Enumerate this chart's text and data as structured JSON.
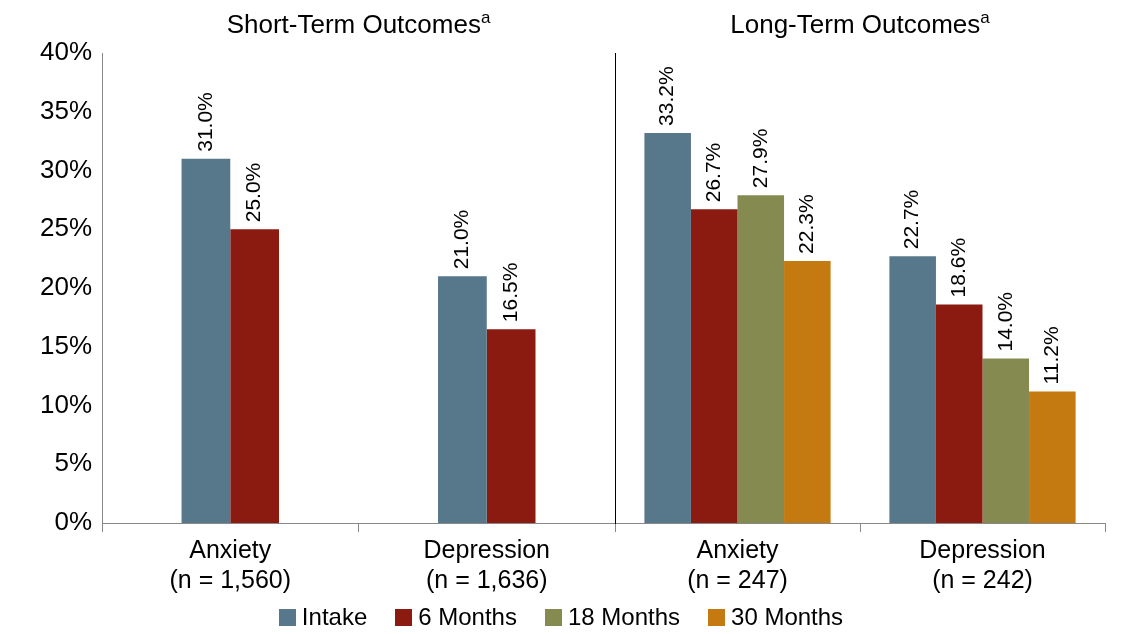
{
  "chart_data": [
    {
      "type": "bar",
      "title": "Short-Term Outcomes$^{a}$",
      "categories": [
        "Anxiety\n(n = 1,560)",
        "Depression\n(n = 1,636)"
      ],
      "legend": "bottom",
      "ylim": [
        0,
        40
      ],
      "yticks": [
        {
          "value": 0,
          "label": "0%"
        },
        {
          "value": 5,
          "label": "5%"
        },
        {
          "value": 10,
          "label": "10%"
        },
        {
          "value": 15,
          "label": "15%"
        },
        {
          "value": 20,
          "label": "20%"
        },
        {
          "value": 25,
          "label": "25%"
        },
        {
          "value": 30,
          "label": "30%"
        },
        {
          "value": 35,
          "label": "35%"
        },
        {
          "value": 40,
          "label": "40%"
        }
      ],
      "series": [
        {
          "name": "Intake",
          "color": "#57788a",
          "values": [
            31.0,
            21.0
          ],
          "value_labels": [
            "31.0%",
            "21.0%"
          ]
        },
        {
          "name": "6 Months",
          "color": "#8b1a10",
          "values": [
            25.0,
            16.5
          ],
          "value_labels": [
            "25.0%",
            "16.5%"
          ]
        }
      ]
    },
    {
      "type": "bar",
      "title": "Long-Term Outcomes$^{a}$",
      "categories": [
        "Anxiety\n(n = 247)",
        "Depression\n(n = 242)"
      ],
      "ylim": [
        0,
        40
      ],
      "tick_labels": "x",
      "legend": "bottom",
      "series": [
        {
          "name": "Intake",
          "color": "#57788a",
          "values": [
            33.2,
            22.7
          ],
          "value_labels": [
            "33.2%",
            "22.7%"
          ]
        },
        {
          "name": "6 Months",
          "color": "#8b1a10",
          "values": [
            26.7,
            18.6
          ],
          "value_labels": [
            "26.7%",
            "18.6%"
          ]
        },
        {
          "name": "18 Months",
          "color": "#858b50",
          "values": [
            27.9,
            14.0
          ],
          "value_labels": [
            "27.9%",
            "14.0%"
          ]
        },
        {
          "name": "30 Months",
          "color": "#c47a10",
          "values": [
            22.3,
            11.2
          ],
          "value_labels": [
            "22.3%",
            "11.2%"
          ]
        }
      ]
    }
  ]
}
